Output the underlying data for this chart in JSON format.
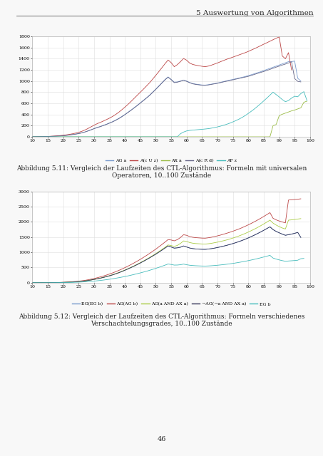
{
  "page_title": "5 Auswertung von Algorithmen",
  "page_number": "46",
  "chart1": {
    "ylim": [
      0,
      1800
    ],
    "yticks": [
      0,
      200,
      400,
      600,
      800,
      1000,
      1200,
      1400,
      1600,
      1800
    ],
    "xlim": [
      10,
      100
    ],
    "xticks": [
      10,
      15,
      20,
      25,
      30,
      35,
      40,
      45,
      50,
      55,
      60,
      65,
      70,
      75,
      80,
      85,
      90,
      95,
      100
    ],
    "caption_line1": "Abbildung 5.11: Vergleich der Laufzeiten des CTL-Algorithmus: Formeln mit universalen",
    "caption_line2": "Operatoren, 10..100 Zustände",
    "series": {
      "AG a": {
        "color": "#7799CC",
        "values": [
          2,
          2,
          3,
          4,
          5,
          6,
          8,
          10,
          13,
          16,
          20,
          26,
          32,
          40,
          48,
          58,
          70,
          86,
          105,
          126,
          148,
          168,
          185,
          205,
          225,
          248,
          272,
          300,
          330,
          365,
          400,
          440,
          480,
          522,
          565,
          610,
          655,
          700,
          748,
          800,
          855,
          912,
          970,
          1028,
          1075,
          1030,
          980,
          985,
          1000,
          1018,
          1000,
          975,
          955,
          945,
          938,
          930,
          928,
          935,
          945,
          955,
          965,
          978,
          992,
          1005,
          1018,
          1030,
          1042,
          1055,
          1068,
          1082,
          1098,
          1115,
          1132,
          1150,
          1168,
          1188,
          1208,
          1228,
          1248,
          1268,
          1288,
          1308,
          1328,
          1348,
          1350,
          1358,
          1050,
          1000
        ]
      },
      "A(c U z)": {
        "color": "#BB4444",
        "values": [
          2,
          2,
          3,
          4,
          5,
          7,
          10,
          13,
          17,
          22,
          28,
          35,
          44,
          54,
          66,
          80,
          98,
          120,
          148,
          178,
          208,
          235,
          258,
          282,
          308,
          335,
          365,
          400,
          440,
          485,
          532,
          582,
          635,
          690,
          745,
          800,
          855,
          912,
          970,
          1035,
          1102,
          1170,
          1240,
          1312,
          1378,
          1330,
          1258,
          1295,
          1348,
          1405,
          1375,
          1322,
          1298,
          1285,
          1275,
          1265,
          1258,
          1268,
          1285,
          1305,
          1325,
          1348,
          1370,
          1392,
          1410,
          1430,
          1450,
          1470,
          1490,
          1510,
          1532,
          1558,
          1582,
          1608,
          1635,
          1662,
          1688,
          1715,
          1742,
          1768,
          1792,
          1450,
          1400,
          1510,
          1200
        ]
      },
      "AX a": {
        "color": "#99BB44",
        "values": [
          0,
          0,
          0,
          0,
          0,
          0,
          0,
          0,
          0,
          0,
          0,
          0,
          0,
          0,
          0,
          0,
          0,
          0,
          0,
          0,
          0,
          0,
          0,
          0,
          0,
          0,
          0,
          0,
          0,
          0,
          0,
          0,
          0,
          0,
          0,
          0,
          0,
          0,
          0,
          0,
          0,
          0,
          0,
          0,
          0,
          0,
          0,
          0,
          0,
          0,
          0,
          0,
          0,
          0,
          0,
          0,
          0,
          0,
          0,
          0,
          0,
          0,
          0,
          0,
          0,
          0,
          0,
          0,
          0,
          0,
          0,
          0,
          0,
          0,
          0,
          0,
          0,
          0,
          200,
          220,
          380,
          405,
          425,
          445,
          465,
          480,
          500,
          520,
          620,
          640
        ]
      },
      "A(c R d)": {
        "color": "#666688",
        "values": [
          2,
          2,
          3,
          4,
          5,
          6,
          8,
          10,
          13,
          16,
          20,
          25,
          32,
          40,
          48,
          58,
          70,
          86,
          104,
          124,
          145,
          165,
          182,
          202,
          222,
          245,
          268,
          295,
          325,
          360,
          396,
          436,
          476,
          518,
          560,
          605,
          650,
          695,
          742,
          795,
          850,
          906,
          965,
          1022,
          1068,
          1025,
          972,
          980,
          996,
          1015,
          995,
          970,
          950,
          940,
          932,
          924,
          922,
          930,
          940,
          950,
          960,
          972,
          986,
          998,
          1010,
          1022,
          1035,
          1048,
          1060,
          1072,
          1085,
          1102,
          1120,
          1138,
          1155,
          1172,
          1190,
          1210,
          1230,
          1250,
          1268,
          1288,
          1305,
          1325,
          1345,
          1045,
          995,
          985
        ]
      },
      "AF z": {
        "color": "#44BBBB",
        "values": [
          0,
          0,
          0,
          0,
          0,
          0,
          0,
          0,
          0,
          0,
          0,
          0,
          0,
          0,
          0,
          0,
          0,
          0,
          0,
          0,
          0,
          0,
          0,
          0,
          0,
          0,
          0,
          0,
          0,
          0,
          0,
          0,
          0,
          0,
          0,
          0,
          0,
          0,
          0,
          0,
          0,
          0,
          0,
          0,
          0,
          0,
          0,
          0,
          55,
          85,
          105,
          115,
          120,
          125,
          130,
          135,
          140,
          146,
          155,
          165,
          178,
          192,
          208,
          225,
          245,
          268,
          292,
          318,
          348,
          382,
          420,
          460,
          502,
          548,
          595,
          645,
          695,
          748,
          802,
          758,
          715,
          668,
          630,
          650,
          695,
          728,
          718,
          775,
          810,
          648
        ]
      }
    }
  },
  "chart2": {
    "ylim": [
      0,
      3000
    ],
    "yticks": [
      0,
      500,
      1000,
      1500,
      2000,
      2500,
      3000
    ],
    "xlim": [
      10,
      100
    ],
    "xticks": [
      10,
      15,
      20,
      25,
      30,
      35,
      40,
      45,
      50,
      55,
      60,
      65,
      70,
      75,
      80,
      85,
      90,
      95,
      100
    ],
    "caption_line1": "Abbildung 5.12: Vergleich der Laufzeiten des CTL-Algorithmus: Formeln verschiedenes",
    "caption_line2": "Verschachtelungsgrades, 10..100 Zustände",
    "series": {
      "EG(EG b)": {
        "color": "#7799CC",
        "values": [
          0,
          0,
          0,
          1,
          1,
          2,
          3,
          4,
          6,
          8,
          11,
          15,
          19,
          24,
          30,
          38,
          48,
          60,
          74,
          90,
          108,
          128,
          150,
          174,
          200,
          228,
          258,
          292,
          328,
          368,
          410,
          454,
          500,
          548,
          598,
          650,
          704,
          760,
          818,
          878,
          940,
          1005,
          1072,
          1140,
          1210,
          1175,
          1138,
          1148,
          1168,
          1210,
          1175,
          1142,
          1122,
          1110,
          1105,
          1100,
          1098,
          1108,
          1120,
          1138,
          1158,
          1180,
          1205,
          1230,
          1258,
          1288,
          1320,
          1355,
          1392,
          1432,
          1475,
          1520,
          1568,
          1618,
          1670,
          1725,
          1782,
          1838,
          1748,
          1688,
          1642,
          1598,
          1560,
          1580,
          1600,
          1625,
          1655,
          1490
        ]
      },
      "AG(AG b)": {
        "color": "#BB4444",
        "values": [
          0,
          0,
          0,
          1,
          2,
          3,
          4,
          6,
          8,
          11,
          15,
          20,
          26,
          33,
          41,
          51,
          63,
          78,
          96,
          116,
          138,
          163,
          190,
          219,
          251,
          285,
          322,
          362,
          404,
          449,
          496,
          546,
          598,
          653,
          710,
          770,
          832,
          897,
          964,
          1033,
          1105,
          1180,
          1258,
          1338,
          1420,
          1405,
          1378,
          1418,
          1488,
          1578,
          1560,
          1518,
          1495,
          1482,
          1475,
          1468,
          1465,
          1478,
          1495,
          1518,
          1542,
          1568,
          1598,
          1628,
          1660,
          1695,
          1732,
          1770,
          1812,
          1858,
          1905,
          1955,
          2008,
          2062,
          2120,
          2180,
          2242,
          2305,
          2120,
          2068,
          2030,
          1998,
          1968,
          2720,
          2728,
          2738,
          2748,
          2760
        ]
      },
      "AG(a AND AX a)": {
        "color": "#AACC44",
        "values": [
          0,
          0,
          0,
          1,
          1,
          2,
          3,
          4,
          6,
          8,
          11,
          15,
          19,
          24,
          30,
          38,
          48,
          60,
          74,
          90,
          108,
          128,
          150,
          175,
          202,
          231,
          263,
          298,
          335,
          375,
          417,
          462,
          508,
          556,
          607,
          660,
          715,
          772,
          832,
          894,
          958,
          1025,
          1095,
          1168,
          1242,
          1222,
          1195,
          1228,
          1292,
          1375,
          1358,
          1322,
          1300,
          1288,
          1282,
          1275,
          1272,
          1282,
          1296,
          1315,
          1335,
          1358,
          1382,
          1408,
          1438,
          1470,
          1504,
          1540,
          1580,
          1622,
          1668,
          1715,
          1765,
          1818,
          1875,
          1934,
          1995,
          2058,
          1962,
          1898,
          1845,
          1800,
          1768,
          2058,
          2068,
          2080,
          2095,
          2108
        ]
      },
      "¬AG(¬a AND AX a)": {
        "color": "#333355",
        "values": [
          0,
          0,
          0,
          1,
          1,
          2,
          3,
          4,
          6,
          8,
          11,
          15,
          19,
          24,
          30,
          38,
          48,
          60,
          74,
          90,
          108,
          128,
          150,
          174,
          200,
          228,
          258,
          292,
          328,
          368,
          410,
          454,
          500,
          548,
          598,
          650,
          704,
          760,
          818,
          878,
          940,
          1005,
          1072,
          1140,
          1210,
          1175,
          1138,
          1148,
          1168,
          1210,
          1175,
          1142,
          1122,
          1110,
          1105,
          1100,
          1098,
          1108,
          1120,
          1138,
          1158,
          1180,
          1205,
          1230,
          1258,
          1288,
          1320,
          1355,
          1392,
          1432,
          1475,
          1520,
          1568,
          1618,
          1670,
          1725,
          1782,
          1838,
          1748,
          1688,
          1642,
          1598,
          1560,
          1580,
          1600,
          1625,
          1655,
          1490
        ]
      },
      "EG b": {
        "color": "#44BBBB",
        "values": [
          0,
          0,
          0,
          0,
          1,
          1,
          1,
          2,
          3,
          4,
          5,
          7,
          9,
          12,
          15,
          19,
          24,
          30,
          37,
          45,
          54,
          64,
          75,
          87,
          100,
          114,
          130,
          147,
          165,
          184,
          204,
          225,
          248,
          272,
          297,
          323,
          350,
          378,
          408,
          440,
          472,
          506,
          542,
          578,
          615,
          600,
          580,
          582,
          592,
          612,
          592,
          575,
          565,
          558,
          554,
          550,
          548,
          552,
          558,
          566,
          575,
          585,
          596,
          608,
          622,
          636,
          652,
          669,
          687,
          706,
          727,
          748,
          771,
          795,
          820,
          846,
          873,
          900,
          812,
          778,
          750,
          726,
          706,
          715,
          722,
          730,
          740,
          790,
          800
        ]
      }
    }
  },
  "background_color": "#f8f8f8",
  "plot_bg_color": "#ffffff",
  "grid_color": "#dddddd",
  "font_color": "#222222",
  "tick_fontsize": 4.5,
  "legend_fontsize": 4.5,
  "caption_fontsize": 6.5,
  "header_fontsize": 7.5
}
